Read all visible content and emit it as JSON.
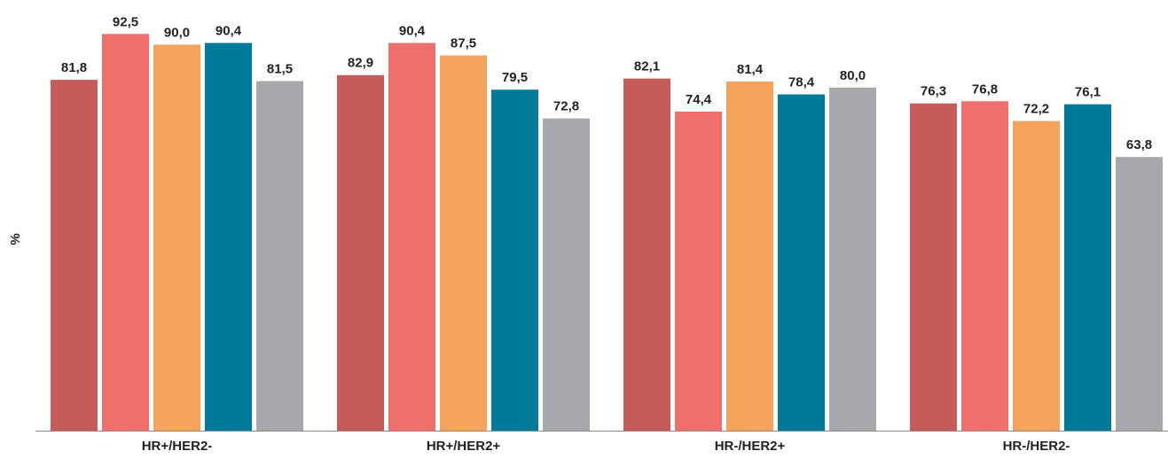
{
  "chart_data": {
    "type": "bar",
    "y_label": "%",
    "categories": [
      "HR+/HER2-",
      "HR+/HER2+",
      "HR-/HER2+",
      "HR-/HER2-"
    ],
    "series": [
      {
        "color": "#c75b59",
        "values": [
          81.8,
          82.9,
          82.1,
          76.3
        ],
        "value_labels": [
          "81,8",
          "82,9",
          "82,1",
          "76,3"
        ]
      },
      {
        "color": "#ef6f6c",
        "values": [
          92.5,
          90.4,
          74.4,
          76.8
        ],
        "value_labels": [
          "92,5",
          "90,4",
          "74,4",
          "76,8"
        ]
      },
      {
        "color": "#f5a25d",
        "values": [
          90.0,
          87.5,
          81.4,
          72.2
        ],
        "value_labels": [
          "90,0",
          "87,5",
          "81,4",
          "72,2"
        ]
      },
      {
        "color": "#007a99",
        "values": [
          90.4,
          79.5,
          78.4,
          76.1
        ],
        "value_labels": [
          "90,4",
          "79,5",
          "78,4",
          "76,1"
        ]
      },
      {
        "color": "#a7a8ab",
        "values": [
          81.5,
          72.8,
          80.0,
          63.8
        ],
        "value_labels": [
          "81,5",
          "72,8",
          "80,0",
          "63,8"
        ]
      }
    ],
    "ylim": [
      0,
      100
    ]
  }
}
